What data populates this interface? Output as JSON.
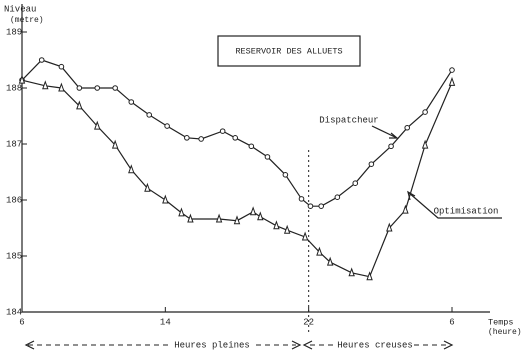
{
  "chart_data": {
    "type": "line",
    "title": "RESERVOIR DES ALLUETS",
    "y_label": "Niveau",
    "y_unit": "(metre)",
    "x_label": "Temps",
    "x_unit": "(heure)",
    "period_labels": [
      "Heures pleines",
      "Heures creuses"
    ],
    "xlim": [
      6,
      30
    ],
    "xticks": [
      6,
      14,
      22,
      {
        "value": 30,
        "label": "6"
      }
    ],
    "ylim": [
      184,
      189.5
    ],
    "yticks": [
      184,
      185,
      186,
      187,
      188,
      189
    ],
    "divider_x": 22,
    "series": [
      {
        "name": "Dispatcheur",
        "color": "#222222",
        "marker": "circle",
        "x": [
          6,
          7.1,
          8.2,
          9.2,
          10.2,
          11.2,
          12.1,
          13.1,
          14.1,
          15.2,
          16.0,
          17.2,
          17.9,
          18.8,
          19.7,
          20.7,
          21.6,
          22.1,
          22.7,
          23.6,
          24.6,
          25.5,
          26.6,
          27.5,
          28.5,
          30
        ],
        "values": [
          188.14,
          188.5,
          188.38,
          188.0,
          188.0,
          188.0,
          187.75,
          187.52,
          187.32,
          187.11,
          187.09,
          187.23,
          187.11,
          186.96,
          186.77,
          186.45,
          186.02,
          185.89,
          185.89,
          186.05,
          186.3,
          186.64,
          186.96,
          187.29,
          187.57,
          188.32
        ]
      },
      {
        "name": "Optimisation",
        "color": "#222222",
        "marker": "triangle",
        "x": [
          6,
          7.3,
          8.2,
          9.2,
          10.2,
          11.2,
          12.1,
          13.0,
          14.0,
          14.9,
          15.4,
          17.0,
          18.0,
          18.9,
          19.3,
          20.2,
          20.8,
          21.8,
          22.6,
          23.2,
          24.4,
          25.4,
          26.5,
          27.4,
          28.5,
          30
        ],
        "values": [
          188.14,
          188.04,
          188.0,
          187.68,
          187.32,
          186.98,
          186.54,
          186.21,
          186.0,
          185.77,
          185.66,
          185.66,
          185.63,
          185.79,
          185.7,
          185.54,
          185.46,
          185.34,
          185.07,
          184.89,
          184.7,
          184.63,
          185.5,
          185.82,
          186.98,
          188.1
        ]
      }
    ]
  }
}
